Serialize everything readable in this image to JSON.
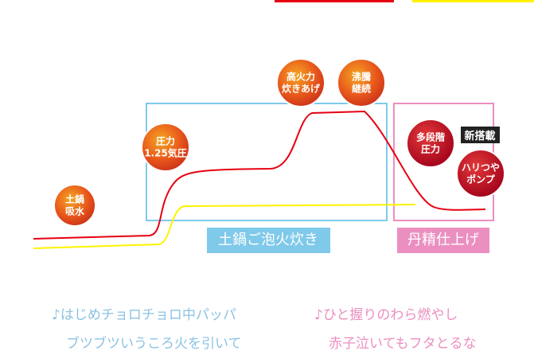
{
  "nodes": [
    {
      "lines": [
        "土鍋",
        "吸水"
      ]
    },
    {
      "lines": [
        "圧力",
        "1.25気圧"
      ]
    },
    {
      "lines": [
        "高火力",
        "炊きあげ"
      ]
    },
    {
      "lines": [
        "沸騰",
        "継続"
      ]
    },
    {
      "lines": [
        "多段階",
        "圧力"
      ]
    },
    {
      "lines": [
        "ハリつや",
        "ポンプ"
      ]
    }
  ],
  "badge": "新搭載",
  "phases": [
    "土鍋ご泡火炊き",
    "丹精仕上げ"
  ],
  "lyrics": {
    "left": [
      "♪はじめチョロチョロ中パッパ",
      "ブツブツいうころ火を引いて"
    ],
    "right": [
      "♪ひと握りのわら燃やし",
      "赤子泣いてもフタとるな"
    ]
  }
}
